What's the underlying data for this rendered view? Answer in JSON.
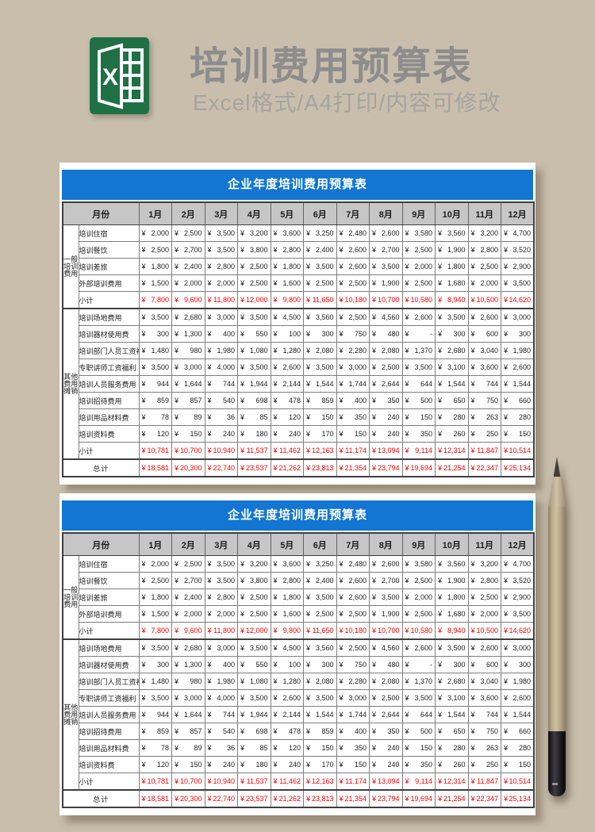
{
  "banner": {
    "title": "培训费用预算表",
    "subtitle": "Excel格式/A4打印/内容可修改",
    "excel_icon": "excel-logo",
    "excel_green": "#1f7145"
  },
  "colors": {
    "page_bg": "#c9beac",
    "table_title_bg": "#1276d2",
    "header_row_bg": "#c6c6c6",
    "subtotal_text": "#fe0000"
  },
  "table": {
    "title": "企业年度培训费用预算表",
    "currency": "¥",
    "month_header": "月份",
    "months": [
      "1月",
      "2月",
      "3月",
      "4月",
      "5月",
      "6月",
      "7月",
      "8月",
      "9月",
      "10月",
      "11月",
      "12月"
    ],
    "groups": [
      {
        "label": "一般培训费用",
        "rows": [
          {
            "label": "培训住宿",
            "values": [
              "2,000",
              "2,500",
              "3,500",
              "3,200",
              "3,600",
              "3,250",
              "2,480",
              "2,600",
              "3,580",
              "3,560",
              "3,200",
              "4,700"
            ]
          },
          {
            "label": "培训餐饮",
            "values": [
              "2,500",
              "2,700",
              "3,500",
              "3,800",
              "2,800",
              "2,400",
              "2,600",
              "2,700",
              "2,500",
              "1,900",
              "2,800",
              "3,520"
            ]
          },
          {
            "label": "培训差旅",
            "values": [
              "1,800",
              "2,400",
              "2,800",
              "2,500",
              "1,800",
              "3,500",
              "2,600",
              "3,500",
              "2,000",
              "1,800",
              "2,500",
              "2,900"
            ]
          },
          {
            "label": "外部培训费用",
            "values": [
              "1,500",
              "2,000",
              "2,000",
              "2,500",
              "1,600",
              "2,500",
              "2,500",
              "1,900",
              "2,500",
              "1,680",
              "2,000",
              "3,500"
            ]
          }
        ],
        "subtotal": {
          "label": "小计",
          "values": [
            "7,800",
            "9,600",
            "11,800",
            "12,000",
            "9,800",
            "11,650",
            "10,180",
            "10,700",
            "10,580",
            "8,940",
            "10,500",
            "14,620"
          ]
        }
      },
      {
        "label": "其他费用摊销",
        "rows": [
          {
            "label": "培训场地费用",
            "values": [
              "3,500",
              "2,680",
              "3,000",
              "3,500",
              "4,500",
              "3,560",
              "2,500",
              "4,560",
              "2,600",
              "3,500",
              "2,600",
              "3,000"
            ]
          },
          {
            "label": "培训器材使用费",
            "values": [
              "300",
              "1,300",
              "400",
              "550",
              "100",
              "300",
              "750",
              "480",
              "-",
              "300",
              "600",
              "300"
            ]
          },
          {
            "label": "培训部门人员工资福利",
            "values": [
              "1,480",
              "980",
              "1,980",
              "1,080",
              "1,280",
              "2,080",
              "2,280",
              "2,080",
              "1,370",
              "2,680",
              "3,040",
              "1,980"
            ]
          },
          {
            "label": "专职讲师工资福利",
            "values": [
              "3,500",
              "3,000",
              "4,000",
              "3,500",
              "2,600",
              "3,500",
              "3,000",
              "2,500",
              "3,500",
              "3,100",
              "3,600",
              "2,600"
            ]
          },
          {
            "label": "培训人员服务费用",
            "values": [
              "944",
              "1,644",
              "744",
              "1,944",
              "2,144",
              "1,544",
              "1,744",
              "2,644",
              "644",
              "1,544",
              "744",
              "1,544"
            ]
          },
          {
            "label": "培训招待费用",
            "values": [
              "859",
              "857",
              "540",
              "698",
              "478",
              "859",
              "400",
              "350",
              "500",
              "650",
              "750",
              "660"
            ]
          },
          {
            "label": "培训用品材料费",
            "values": [
              "78",
              "89",
              "36",
              "85",
              "120",
              "150",
              "350",
              "240",
              "150",
              "280",
              "263",
              "280"
            ]
          },
          {
            "label": "培训资料费",
            "values": [
              "120",
              "150",
              "240",
              "180",
              "240",
              "170",
              "150",
              "240",
              "350",
              "260",
              "250",
              "150"
            ]
          }
        ],
        "subtotal": {
          "label": "小计",
          "values": [
            "10,781",
            "10,700",
            "10,940",
            "11,537",
            "11,462",
            "12,163",
            "11,174",
            "13,094",
            "9,114",
            "12,314",
            "11,847",
            "10,514"
          ]
        }
      }
    ],
    "total": {
      "label": "总计",
      "values": [
        "18,581",
        "20,300",
        "22,740",
        "23,537",
        "21,262",
        "23,813",
        "21,354",
        "23,794",
        "19,694",
        "21,254",
        "22,347",
        "25,134"
      ]
    }
  },
  "decor": {
    "pencil": "wooden-pencil"
  }
}
